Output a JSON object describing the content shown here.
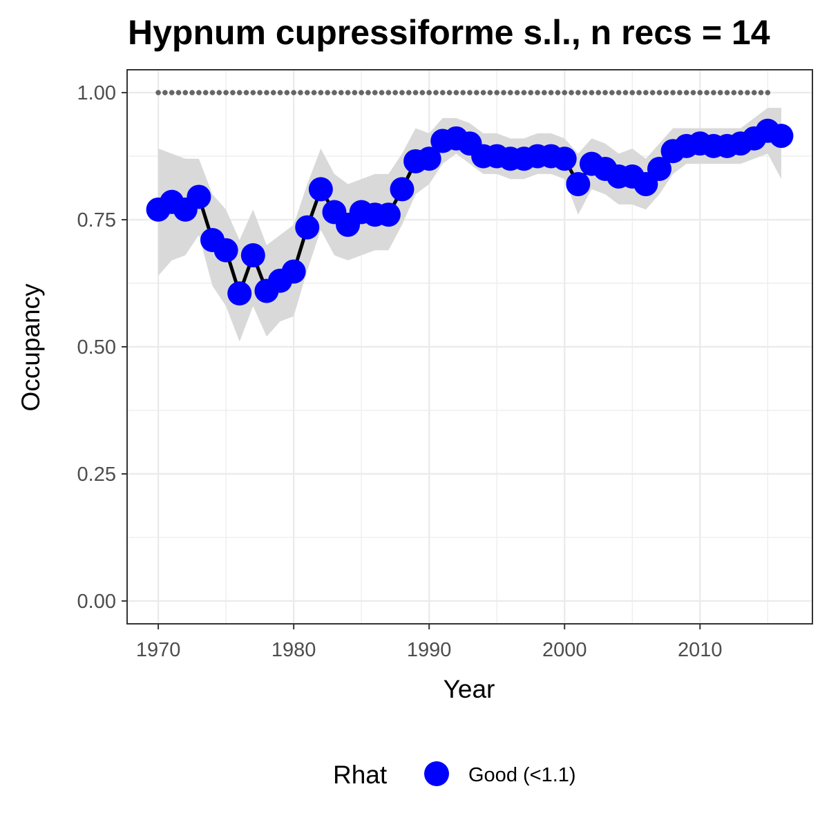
{
  "chart_data": {
    "type": "line",
    "title": "Hypnum cupressiforme s.l., n recs = 14",
    "xlabel": "Year",
    "ylabel": "Occupancy",
    "xlim": [
      1967.7,
      2018.3
    ],
    "ylim": [
      -0.045,
      1.045
    ],
    "x_ticks": [
      1970,
      1980,
      1990,
      2000,
      2010
    ],
    "y_ticks": [
      0,
      0.25,
      0.5,
      0.75,
      1
    ],
    "x_tick_labels": [
      "1970",
      "1980",
      "1990",
      "2000",
      "2010"
    ],
    "y_tick_labels": [
      "0.00",
      "0.25",
      "0.50",
      "0.75",
      "1.00"
    ],
    "grid": true,
    "legend": {
      "title": "Rhat",
      "position": "bottom",
      "entries": [
        {
          "label": "Good (<1.1)",
          "color": "#0000ff"
        }
      ]
    },
    "colors": {
      "points": "#0000ff",
      "line": "#000000",
      "ribbon": "#d9d9d9",
      "reference_dots": "#666666"
    },
    "series": [
      {
        "x": [
          1970,
          1971,
          1972,
          1973,
          1974,
          1975,
          1976,
          1977,
          1978,
          1979,
          1980,
          1981,
          1982,
          1983,
          1984,
          1985,
          1986,
          1987,
          1988,
          1989,
          1990,
          1991,
          1992,
          1993,
          1994,
          1995,
          1996,
          1997,
          1998,
          1999,
          2000,
          2001,
          2002,
          2003,
          2004,
          2005,
          2006,
          2007,
          2008,
          2009,
          2010,
          2011,
          2012,
          2013,
          2014,
          2015,
          2016
        ],
        "y": [
          0.77,
          0.785,
          0.77,
          0.795,
          0.71,
          0.69,
          0.605,
          0.68,
          0.61,
          0.63,
          0.648,
          0.735,
          0.81,
          0.765,
          0.74,
          0.765,
          0.76,
          0.76,
          0.81,
          0.865,
          0.87,
          0.905,
          0.91,
          0.9,
          0.875,
          0.875,
          0.87,
          0.87,
          0.875,
          0.875,
          0.87,
          0.82,
          0.86,
          0.85,
          0.835,
          0.835,
          0.82,
          0.85,
          0.885,
          0.895,
          0.9,
          0.895,
          0.895,
          0.9,
          0.91,
          0.925,
          0.915
        ],
        "lower": [
          0.64,
          0.67,
          0.68,
          0.72,
          0.62,
          0.58,
          0.51,
          0.58,
          0.52,
          0.55,
          0.56,
          0.65,
          0.73,
          0.68,
          0.67,
          0.68,
          0.69,
          0.69,
          0.74,
          0.8,
          0.82,
          0.86,
          0.88,
          0.86,
          0.84,
          0.84,
          0.83,
          0.83,
          0.84,
          0.84,
          0.83,
          0.76,
          0.81,
          0.8,
          0.78,
          0.78,
          0.77,
          0.8,
          0.84,
          0.86,
          0.86,
          0.86,
          0.86,
          0.86,
          0.87,
          0.88,
          0.83
        ],
        "upper": [
          0.89,
          0.88,
          0.87,
          0.87,
          0.8,
          0.77,
          0.71,
          0.77,
          0.7,
          0.72,
          0.74,
          0.82,
          0.89,
          0.84,
          0.82,
          0.83,
          0.84,
          0.84,
          0.88,
          0.93,
          0.92,
          0.95,
          0.95,
          0.94,
          0.92,
          0.92,
          0.91,
          0.91,
          0.92,
          0.92,
          0.91,
          0.88,
          0.91,
          0.9,
          0.88,
          0.89,
          0.87,
          0.9,
          0.93,
          0.93,
          0.93,
          0.93,
          0.93,
          0.93,
          0.95,
          0.97,
          0.97
        ]
      }
    ],
    "reference_line": {
      "y": 1.0,
      "x_start": 1970,
      "x_end": 2015
    }
  }
}
